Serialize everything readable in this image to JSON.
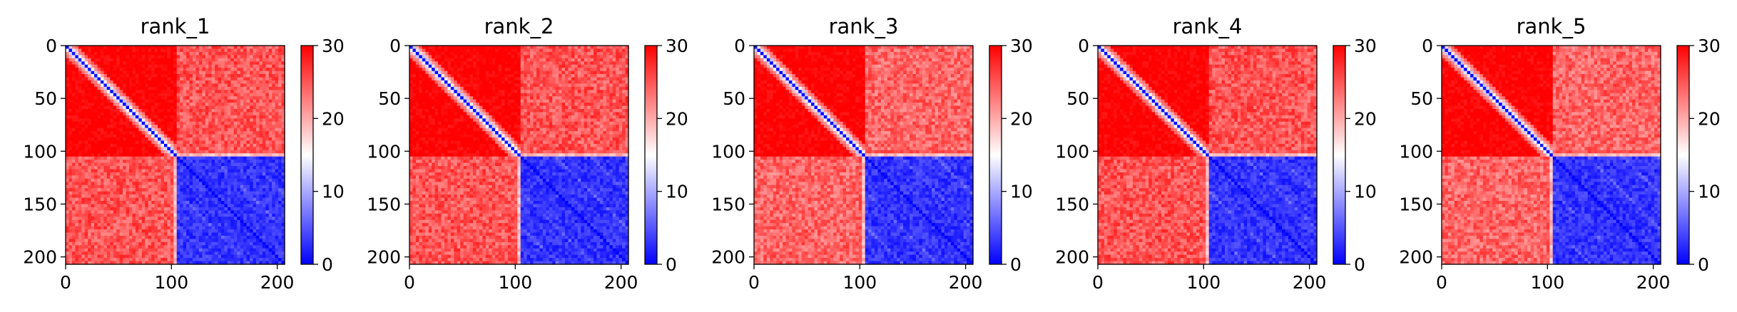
{
  "chart_data": [
    {
      "type": "heatmap",
      "title": "rank_1",
      "matrix_size": 207,
      "xlim": [
        0,
        207
      ],
      "ylim": [
        207,
        0
      ],
      "xticks": [
        0,
        100,
        200
      ],
      "yticks": [
        0,
        50,
        100,
        150,
        200
      ],
      "colorbar": {
        "range": [
          0,
          30
        ],
        "ticks": [
          0,
          10,
          20,
          30
        ],
        "colormap": "bwr"
      },
      "blocks": {
        "domain_boundary": 104,
        "diagonal_value": 0,
        "off_diagonal_top": 30,
        "cross_domain": 25,
        "bottom_domain": 3
      }
    },
    {
      "type": "heatmap",
      "title": "rank_2",
      "matrix_size": 207,
      "xlim": [
        0,
        207
      ],
      "ylim": [
        207,
        0
      ],
      "xticks": [
        0,
        100,
        200
      ],
      "yticks": [
        0,
        50,
        100,
        150,
        200
      ],
      "colorbar": {
        "range": [
          0,
          30
        ],
        "ticks": [
          0,
          10,
          20,
          30
        ],
        "colormap": "bwr"
      },
      "blocks": {
        "domain_boundary": 104,
        "diagonal_value": 0,
        "off_diagonal_top": 30,
        "cross_domain": 25,
        "bottom_domain": 3
      }
    },
    {
      "type": "heatmap",
      "title": "rank_3",
      "matrix_size": 207,
      "xlim": [
        0,
        207
      ],
      "ylim": [
        207,
        0
      ],
      "xticks": [
        0,
        100,
        200
      ],
      "yticks": [
        0,
        50,
        100,
        150,
        200
      ],
      "colorbar": {
        "range": [
          0,
          30
        ],
        "ticks": [
          0,
          10,
          20,
          30
        ],
        "colormap": "bwr"
      },
      "blocks": {
        "domain_boundary": 104,
        "diagonal_value": 0,
        "off_diagonal_top": 30,
        "cross_domain": 24,
        "bottom_domain": 3
      }
    },
    {
      "type": "heatmap",
      "title": "rank_4",
      "matrix_size": 207,
      "xlim": [
        0,
        207
      ],
      "ylim": [
        207,
        0
      ],
      "xticks": [
        0,
        100,
        200
      ],
      "yticks": [
        0,
        50,
        100,
        150,
        200
      ],
      "colorbar": {
        "range": [
          0,
          30
        ],
        "ticks": [
          0,
          10,
          20,
          30
        ],
        "colormap": "bwr"
      },
      "blocks": {
        "domain_boundary": 104,
        "diagonal_value": 0,
        "off_diagonal_top": 30,
        "cross_domain": 25,
        "bottom_domain": 3
      }
    },
    {
      "type": "heatmap",
      "title": "rank_5",
      "matrix_size": 207,
      "xlim": [
        0,
        207
      ],
      "ylim": [
        207,
        0
      ],
      "xticks": [
        0,
        100,
        200
      ],
      "yticks": [
        0,
        50,
        100,
        150,
        200
      ],
      "colorbar": {
        "range": [
          0,
          30
        ],
        "ticks": [
          0,
          10,
          20,
          30
        ],
        "colormap": "bwr"
      },
      "blocks": {
        "domain_boundary": 104,
        "diagonal_value": 0,
        "off_diagonal_top": 30,
        "cross_domain": 24,
        "bottom_domain": 3
      }
    }
  ]
}
